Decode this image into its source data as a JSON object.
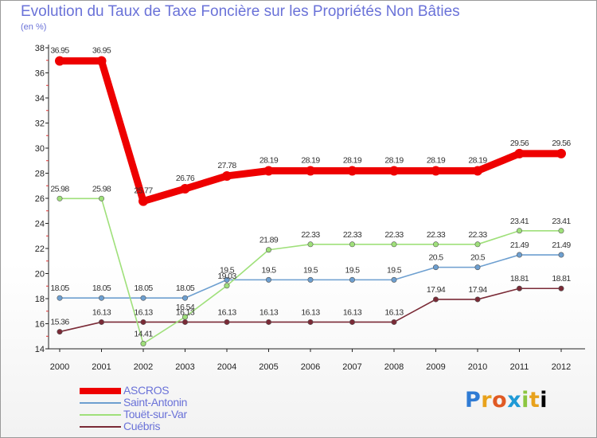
{
  "chart_data": {
    "type": "line",
    "title": "Evolution du Taux de Taxe Foncière sur les Propriétés Non Bâties",
    "ylabel": "(en %)",
    "xlabel": "",
    "ylim": [
      14,
      38
    ],
    "yticks": [
      14,
      16,
      18,
      20,
      22,
      24,
      26,
      28,
      30,
      32,
      34,
      36,
      38
    ],
    "categories": [
      "2000",
      "2001",
      "2002",
      "2003",
      "2004",
      "2005",
      "2006",
      "2007",
      "2008",
      "2009",
      "2010",
      "2011",
      "2012"
    ],
    "series": [
      {
        "name": "ASCROS",
        "color": "#ee0000",
        "values": [
          36.95,
          36.95,
          25.77,
          26.76,
          27.78,
          28.19,
          28.19,
          28.19,
          28.19,
          28.19,
          28.19,
          29.56,
          29.56
        ],
        "labels": [
          "36.95",
          "36.95",
          "25.77",
          "26.76",
          "27.78",
          "28.19",
          "28.19",
          "28.19",
          "28.19",
          "28.19",
          "28.19",
          "29.56",
          "29.56"
        ]
      },
      {
        "name": "Saint-Antonin",
        "color": "#6d9fd0",
        "values": [
          18.05,
          18.05,
          18.05,
          18.05,
          19.5,
          19.5,
          19.5,
          19.5,
          19.5,
          20.5,
          20.5,
          21.49,
          21.49
        ],
        "labels": [
          "18.05",
          "18.05",
          "18.05",
          "18.05",
          "19.5",
          "19.5",
          "19.5",
          "19.5",
          "19.5",
          "20.5",
          "20.5",
          "21.49",
          "21.49"
        ]
      },
      {
        "name": "Touët-sur-Var",
        "color": "#9fe07a",
        "values": [
          25.98,
          25.98,
          14.41,
          16.54,
          19.03,
          21.89,
          22.33,
          22.33,
          22.33,
          22.33,
          22.33,
          23.41,
          23.41
        ],
        "labels": [
          "25.98",
          "25.98",
          "14.41",
          "16.54",
          "19.03",
          "21.89",
          "22.33",
          "22.33",
          "22.33",
          "22.33",
          "22.33",
          "23.41",
          "23.41"
        ]
      },
      {
        "name": "Cuébris",
        "color": "#7a2a36",
        "values": [
          15.36,
          16.13,
          16.13,
          16.13,
          16.13,
          16.13,
          16.13,
          16.13,
          16.13,
          17.94,
          17.94,
          18.81,
          18.81
        ],
        "labels": [
          "15.36",
          "16.13",
          "16.13",
          "16.13",
          "16.13",
          "16.13",
          "16.13",
          "16.13",
          "16.13",
          "17.94",
          "17.94",
          "18.81",
          "18.81"
        ]
      }
    ],
    "legend_position": "bottom-left",
    "grid": false
  },
  "logo": {
    "letters": [
      "P",
      "r",
      "o",
      "x",
      "i",
      "t",
      "i"
    ]
  }
}
